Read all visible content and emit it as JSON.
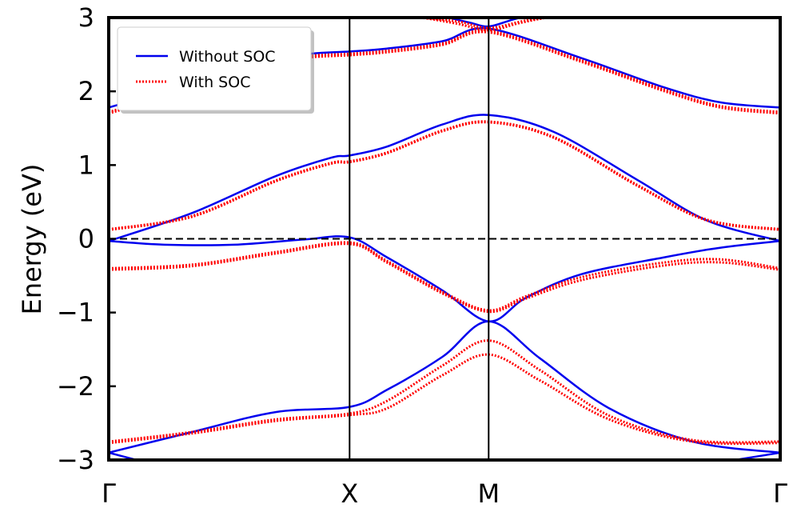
{
  "chart_data": {
    "type": "line",
    "title": "",
    "xlabel": "",
    "ylabel": "Energy (eV)",
    "ylim": [
      -3,
      3
    ],
    "yticks": [
      -3,
      -2,
      -1,
      0,
      1,
      2,
      3
    ],
    "ytick_labels": [
      "−3",
      "−2",
      "−1",
      "0",
      "1",
      "2",
      "3"
    ],
    "xlim": [
      0,
      2.4142
    ],
    "kpoints": [
      {
        "label": "Γ",
        "x": 0
      },
      {
        "label": "X",
        "x": 0.866
      },
      {
        "label": "M",
        "x": 1.366
      },
      {
        "label": "Γ",
        "x": 2.4142
      }
    ],
    "fermi_level": 0,
    "legend": {
      "placement": "top-left",
      "frame": true
    },
    "colors": {
      "without_soc": "#0000ee",
      "with_soc": "#ff0000",
      "fermi": "#000000"
    },
    "series": [
      {
        "name": "Without SOC",
        "style": "solid",
        "color": "#0000ee",
        "bands": [
          [
            [
              0,
              1.78
            ],
            [
              0.25,
              2.05
            ],
            [
              0.5,
              2.35
            ],
            [
              0.7,
              2.5
            ],
            [
              0.866,
              2.54
            ],
            [
              1.0,
              2.58
            ],
            [
              1.2,
              2.68
            ],
            [
              1.366,
              2.85
            ],
            [
              1.7,
              2.45
            ],
            [
              2.0,
              2.05
            ],
            [
              2.2,
              1.85
            ],
            [
              2.4142,
              1.78
            ]
          ],
          [
            [
              1.2,
              3.02
            ],
            [
              1.3,
              2.93
            ],
            [
              1.366,
              2.88
            ],
            [
              1.45,
              2.97
            ],
            [
              1.5,
              3.02
            ]
          ],
          [
            [
              0,
              -0.03
            ],
            [
              0.3,
              0.35
            ],
            [
              0.6,
              0.85
            ],
            [
              0.8,
              1.1
            ],
            [
              0.866,
              1.13
            ],
            [
              1.0,
              1.25
            ],
            [
              1.2,
              1.55
            ],
            [
              1.366,
              1.68
            ],
            [
              1.6,
              1.45
            ],
            [
              1.9,
              0.8
            ],
            [
              2.15,
              0.25
            ],
            [
              2.4142,
              -0.03
            ]
          ],
          [
            [
              0,
              -0.03
            ],
            [
              0.2,
              -0.08
            ],
            [
              0.45,
              -0.08
            ],
            [
              0.7,
              -0.01
            ],
            [
              0.866,
              0.02
            ],
            [
              1.0,
              -0.25
            ],
            [
              1.2,
              -0.7
            ],
            [
              1.366,
              -1.12
            ],
            [
              1.5,
              -0.8
            ],
            [
              1.7,
              -0.48
            ],
            [
              2.0,
              -0.25
            ],
            [
              2.2,
              -0.12
            ],
            [
              2.4142,
              -0.03
            ]
          ],
          [
            [
              0,
              -2.9
            ],
            [
              0.3,
              -2.62
            ],
            [
              0.6,
              -2.35
            ],
            [
              0.866,
              -2.28
            ],
            [
              1.0,
              -2.05
            ],
            [
              1.2,
              -1.6
            ],
            [
              1.366,
              -1.12
            ],
            [
              1.55,
              -1.62
            ],
            [
              1.8,
              -2.3
            ],
            [
              2.1,
              -2.75
            ],
            [
              2.4142,
              -2.9
            ]
          ],
          [
            [
              0,
              -2.9
            ],
            [
              0.12,
              -3.02
            ]
          ],
          [
            [
              2.22,
              -3.02
            ],
            [
              2.4142,
              -2.9
            ]
          ]
        ]
      },
      {
        "name": "With SOC",
        "style": "dotted",
        "color": "#ff0000",
        "bands": [
          [
            [
              0,
              1.7
            ],
            [
              0.25,
              1.98
            ],
            [
              0.5,
              2.3
            ],
            [
              0.7,
              2.45
            ],
            [
              0.866,
              2.49
            ],
            [
              1.0,
              2.53
            ],
            [
              1.2,
              2.63
            ],
            [
              1.366,
              2.8
            ],
            [
              1.7,
              2.4
            ],
            [
              2.0,
              2.0
            ],
            [
              2.2,
              1.78
            ],
            [
              2.4142,
              1.7
            ]
          ],
          [
            [
              0,
              1.72
            ],
            [
              0.25,
              2.0
            ],
            [
              0.5,
              2.32
            ],
            [
              0.7,
              2.47
            ],
            [
              0.866,
              2.51
            ],
            [
              1.0,
              2.55
            ],
            [
              1.2,
              2.65
            ],
            [
              1.366,
              2.82
            ],
            [
              1.7,
              2.42
            ],
            [
              2.0,
              2.02
            ],
            [
              2.2,
              1.8
            ],
            [
              2.4142,
              1.72
            ]
          ],
          [
            [
              1.1,
              3.02
            ],
            [
              1.25,
              2.92
            ],
            [
              1.366,
              2.83
            ],
            [
              1.48,
              2.93
            ],
            [
              1.6,
              3.02
            ]
          ],
          [
            [
              1.05,
              3.02
            ],
            [
              1.25,
              2.95
            ],
            [
              1.366,
              2.86
            ],
            [
              1.5,
              2.96
            ],
            [
              1.62,
              3.02
            ]
          ],
          [
            [
              0,
              0.12
            ],
            [
              0.3,
              0.3
            ],
            [
              0.6,
              0.78
            ],
            [
              0.8,
              1.02
            ],
            [
              0.866,
              1.04
            ],
            [
              1.0,
              1.16
            ],
            [
              1.2,
              1.46
            ],
            [
              1.366,
              1.58
            ],
            [
              1.6,
              1.37
            ],
            [
              1.9,
              0.72
            ],
            [
              2.15,
              0.25
            ],
            [
              2.4142,
              0.12
            ]
          ],
          [
            [
              0,
              0.13
            ],
            [
              0.3,
              0.31
            ],
            [
              0.6,
              0.79
            ],
            [
              0.8,
              1.03
            ],
            [
              0.866,
              1.05
            ],
            [
              1.0,
              1.17
            ],
            [
              1.2,
              1.47
            ],
            [
              1.366,
              1.59
            ],
            [
              1.6,
              1.38
            ],
            [
              1.9,
              0.73
            ],
            [
              2.15,
              0.26
            ],
            [
              2.4142,
              0.13
            ]
          ],
          [
            [
              0,
              -0.4
            ],
            [
              0.3,
              -0.35
            ],
            [
              0.6,
              -0.18
            ],
            [
              0.866,
              -0.05
            ],
            [
              1.0,
              -0.3
            ],
            [
              1.2,
              -0.72
            ],
            [
              1.366,
              -0.97
            ],
            [
              1.5,
              -0.78
            ],
            [
              1.7,
              -0.52
            ],
            [
              2.0,
              -0.32
            ],
            [
              2.2,
              -0.28
            ],
            [
              2.4142,
              -0.4
            ]
          ],
          [
            [
              0,
              -0.42
            ],
            [
              0.3,
              -0.37
            ],
            [
              0.6,
              -0.2
            ],
            [
              0.866,
              -0.07
            ],
            [
              1.0,
              -0.32
            ],
            [
              1.2,
              -0.74
            ],
            [
              1.366,
              -0.99
            ],
            [
              1.5,
              -0.81
            ],
            [
              1.7,
              -0.56
            ],
            [
              2.0,
              -0.36
            ],
            [
              2.2,
              -0.32
            ],
            [
              2.4142,
              -0.42
            ]
          ],
          [
            [
              0,
              -2.75
            ],
            [
              0.3,
              -2.62
            ],
            [
              0.6,
              -2.45
            ],
            [
              0.866,
              -2.37
            ],
            [
              1.0,
              -2.2
            ],
            [
              1.2,
              -1.72
            ],
            [
              1.366,
              -1.38
            ],
            [
              1.55,
              -1.78
            ],
            [
              1.8,
              -2.4
            ],
            [
              2.1,
              -2.73
            ],
            [
              2.4142,
              -2.75
            ]
          ],
          [
            [
              0,
              -2.77
            ],
            [
              0.3,
              -2.64
            ],
            [
              0.6,
              -2.47
            ],
            [
              0.866,
              -2.39
            ],
            [
              1.0,
              -2.3
            ],
            [
              1.2,
              -1.85
            ],
            [
              1.366,
              -1.57
            ],
            [
              1.55,
              -1.92
            ],
            [
              1.8,
              -2.45
            ],
            [
              2.1,
              -2.75
            ],
            [
              2.4142,
              -2.77
            ]
          ]
        ]
      }
    ]
  }
}
